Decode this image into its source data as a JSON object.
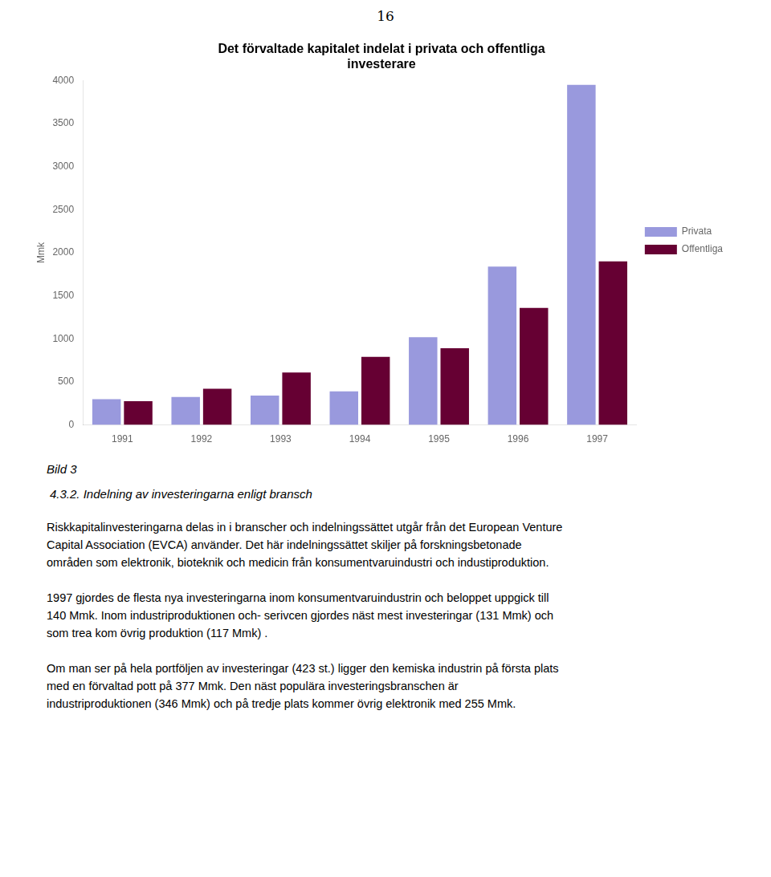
{
  "page_number": "16",
  "caption": "Bild 3",
  "section_title": "4.3.2.   Indelning av investeringarna enligt bransch",
  "paragraphs": [
    [
      "Riskkapitalinvesteringarna delas in i branscher och indelningssättet utgår från det European Venture",
      "Capital Association (EVCA) använder. Det här indelningssättet skiljer på forskningsbetonade",
      "områden som elektronik, bioteknik och medicin från konsumentvaruindustri och industiproduktion."
    ],
    [
      "1997 gjordes de flesta nya investeringarna inom konsumentvaruindustrin och beloppet uppgick till",
      "140 Mmk. Inom industriproduktionen och- serivcen gjordes näst mest investeringar (131 Mmk) och",
      "som trea kom övrig produktion (117 Mmk) ."
    ],
    [
      "Om man ser på hela portföljen av investeringar (423 st.) ligger den kemiska industrin på första plats",
      "med en förvaltad pott på 377 Mmk. Den näst populära investeringsbranschen är",
      "industriproduktionen (346 Mmk) och på tredje plats kommer övrig elektronik med 255 Mmk."
    ]
  ],
  "chart_data": {
    "type": "bar",
    "title": [
      "Det förvaltade kapitalet indelat i privata och offentliga",
      "investerare"
    ],
    "categories": [
      "1991",
      "1992",
      "1993",
      "1994",
      "1995",
      "1996",
      "1997"
    ],
    "series": [
      {
        "name": "Privata",
        "color": "#9999dd",
        "values": [
          300,
          325,
          340,
          390,
          1020,
          1840,
          3950
        ]
      },
      {
        "name": "Offentliga",
        "color": "#660033",
        "values": [
          275,
          420,
          610,
          790,
          890,
          1360,
          1900
        ]
      }
    ],
    "y_label": "Mmk",
    "ylim": [
      0,
      4000
    ],
    "yticks": [
      0,
      500,
      1000,
      1500,
      2000,
      2500,
      3000,
      3500,
      4000
    ],
    "grid": false,
    "legend": "right"
  }
}
